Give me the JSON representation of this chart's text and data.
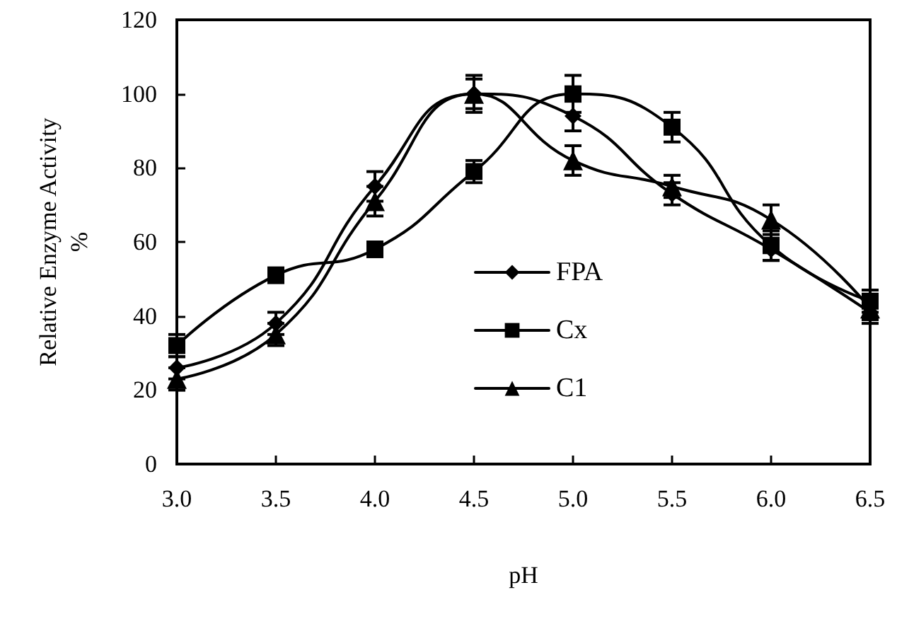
{
  "chart_data": {
    "type": "line",
    "xlabel": "pH",
    "ylabel": "Relative Enzyme Activity\n%",
    "x": [
      3.0,
      3.5,
      4.0,
      4.5,
      5.0,
      5.5,
      6.0,
      6.5
    ],
    "series": [
      {
        "name": "FPA",
        "color": "#000000",
        "marker": "diamond",
        "values": [
          26,
          38,
          75,
          100,
          94,
          73,
          58,
          41
        ],
        "errors": [
          3,
          3,
          4,
          5,
          4,
          3,
          3,
          3
        ]
      },
      {
        "name": "Cx",
        "color": "#000000",
        "marker": "square",
        "values": [
          32,
          51,
          58,
          79,
          100,
          91,
          59,
          44
        ],
        "errors": [
          3,
          2,
          2,
          3,
          5,
          4,
          4,
          3
        ]
      },
      {
        "name": "C1",
        "color": "#000000",
        "marker": "triangle",
        "values": [
          23,
          35,
          71,
          100,
          82,
          75,
          66,
          42
        ],
        "errors": [
          3,
          3,
          4,
          4,
          4,
          3,
          4,
          3
        ]
      }
    ],
    "xlim": [
      3.0,
      6.5
    ],
    "xticks": [
      {
        "value": 3.0,
        "label": "3.0"
      },
      {
        "value": 3.5,
        "label": "3.5"
      },
      {
        "value": 4.0,
        "label": "4.0"
      },
      {
        "value": 4.5,
        "label": "4.5"
      },
      {
        "value": 5.0,
        "label": "5.0"
      },
      {
        "value": 5.5,
        "label": "5.5"
      },
      {
        "value": 6.0,
        "label": "6.0"
      },
      {
        "value": 6.5,
        "label": "6.5"
      }
    ],
    "ylim": [
      0,
      120
    ],
    "yticks": [
      0,
      20,
      40,
      60,
      80,
      100,
      120
    ],
    "grid": false,
    "legend": "bottom right",
    "line_style": "solid"
  }
}
